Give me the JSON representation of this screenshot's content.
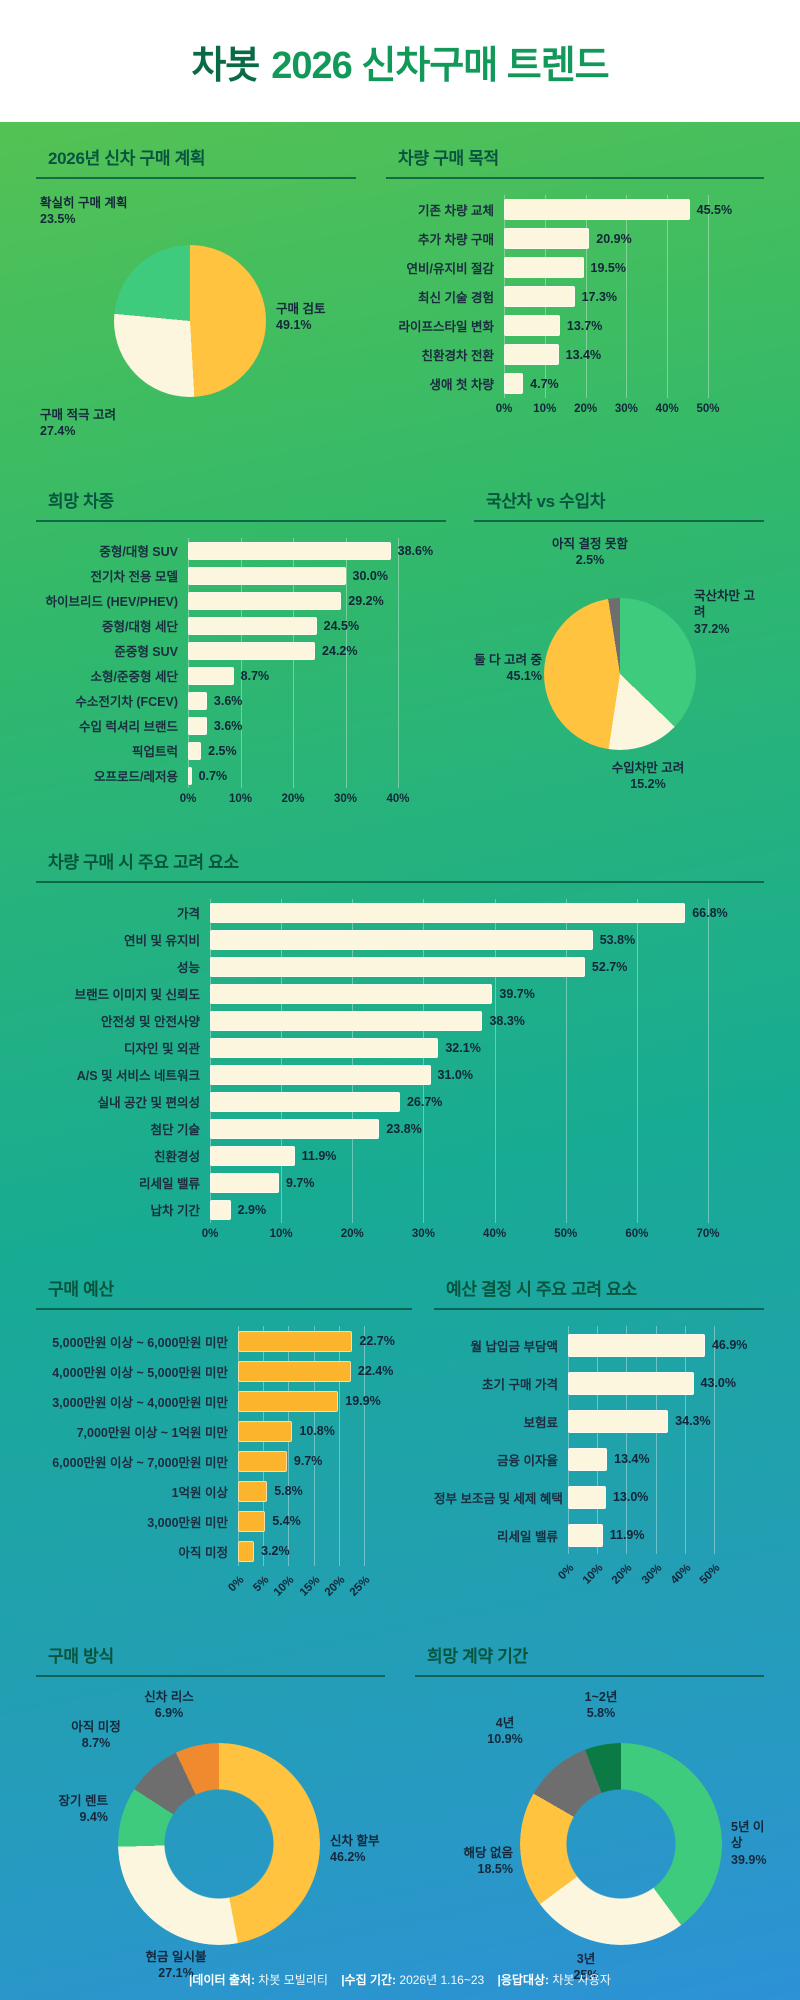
{
  "header": {
    "logo": "차봇",
    "title": "2026 신차구매 트렌드"
  },
  "footer": {
    "parts": [
      {
        "label": "|데이터 출처:",
        "value": "차봇 모빌리티"
      },
      {
        "label": "|수집 기간:",
        "value": "2026년 1.16~23"
      },
      {
        "label": "|응답대상:",
        "value": "차봇 사용자"
      }
    ]
  },
  "colors": {
    "background_top": "#5cc44f",
    "background_bottom": "#2d92d6",
    "section_title": "#07553f",
    "bar_cream": "#fbf6dd",
    "bar_orange": "#fcb42c",
    "pie_green": "#3ecb7e",
    "pie_yellow": "#ffc33f",
    "pie_cream": "#fbf6dd",
    "pie_gray": "#6e6e6e",
    "pie_orange": "#ef8a2e",
    "pie_dark_green": "#0c7a45",
    "text_dark": "#1b2d40"
  },
  "chart_data": [
    {
      "id": "purchase-plan",
      "title": "2026년 신차 구매 계획",
      "type": "pie",
      "slices": [
        {
          "label": "구매 검토",
          "value": 49.1,
          "value_label": "49.1%",
          "color": "#ffc33f"
        },
        {
          "label": "구매 적극 고려",
          "value": 27.4,
          "value_label": "27.4%",
          "color": "#fbf6dd"
        },
        {
          "label": "확실히 구매 계획",
          "value": 23.5,
          "value_label": "23.5%",
          "color": "#3ecb7e"
        }
      ]
    },
    {
      "id": "purchase-purpose",
      "title": "차량 구매 목적",
      "type": "bar",
      "categories": [
        "기존 차량 교체",
        "추가 차량 구매",
        "연비/유지비 절감",
        "최신 기술 경험",
        "라이프스타일 변화",
        "친환경차 전환",
        "생애 첫 차량"
      ],
      "values": [
        45.5,
        20.9,
        19.5,
        17.3,
        13.7,
        13.4,
        4.7
      ],
      "value_labels": [
        "45.5%",
        "20.9%",
        "19.5%",
        "17.3%",
        "13.7%",
        "13.4%",
        "4.7%"
      ],
      "xlim": [
        0,
        50
      ],
      "ticks": [
        "0%",
        "10%",
        "20%",
        "30%",
        "40%",
        "50%"
      ],
      "bar_color": "#fbf6dd",
      "grid": true,
      "tick_rotation": 0
    },
    {
      "id": "desired-vehicle-type",
      "title": "희망 차종",
      "type": "bar",
      "categories": [
        "중형/대형 SUV",
        "전기차 전용 모델",
        "하이브리드 (HEV/PHEV)",
        "중형/대형 세단",
        "준중형 SUV",
        "소형/준중형 세단",
        "수소전기차 (FCEV)",
        "수입 럭셔리 브랜드",
        "픽업트럭",
        "오프로드/레저용"
      ],
      "values": [
        38.6,
        30.0,
        29.2,
        24.5,
        24.2,
        8.7,
        3.6,
        3.6,
        2.5,
        0.7
      ],
      "value_labels": [
        "38.6%",
        "30.0%",
        "29.2%",
        "24.5%",
        "24.2%",
        "8.7%",
        "3.6%",
        "3.6%",
        "2.5%",
        "0.7%"
      ],
      "xlim": [
        0,
        40
      ],
      "ticks": [
        "0%",
        "10%",
        "20%",
        "30%",
        "40%"
      ],
      "bar_color": "#fbf6dd",
      "grid": true,
      "tick_rotation": 0
    },
    {
      "id": "domestic-vs-imported",
      "title": "국산차 vs 수입차",
      "type": "pie",
      "slices": [
        {
          "label": "국산차만 고려",
          "value": 37.2,
          "value_label": "37.2%",
          "color": "#3ecb7e"
        },
        {
          "label": "수입차만 고려",
          "value": 15.2,
          "value_label": "15.2%",
          "color": "#fbf6dd"
        },
        {
          "label": "둘 다 고려 중",
          "value": 45.1,
          "value_label": "45.1%",
          "color": "#ffc33f"
        },
        {
          "label": "아직 결정 못함",
          "value": 2.5,
          "value_label": "2.5%",
          "color": "#6e6e6e"
        }
      ]
    },
    {
      "id": "purchase-considerations",
      "title": "차량 구매 시 주요 고려 요소",
      "type": "bar",
      "categories": [
        "가격",
        "연비 및 유지비",
        "성능",
        "브랜드 이미지 및 신뢰도",
        "안전성 및 안전사양",
        "디자인 및 외관",
        "A/S 및 서비스 네트워크",
        "실내 공간 및 편의성",
        "첨단 기술",
        "친환경성",
        "리세일 밸류",
        "납차 기간"
      ],
      "values": [
        66.8,
        53.8,
        52.7,
        39.7,
        38.3,
        32.1,
        31.0,
        26.7,
        23.8,
        11.9,
        9.7,
        2.9
      ],
      "value_labels": [
        "66.8%",
        "53.8%",
        "52.7%",
        "39.7%",
        "38.3%",
        "32.1%",
        "31.0%",
        "26.7%",
        "23.8%",
        "11.9%",
        "9.7%",
        "2.9%"
      ],
      "xlim": [
        0,
        70
      ],
      "ticks": [
        "0%",
        "10%",
        "20%",
        "30%",
        "40%",
        "50%",
        "60%",
        "70%"
      ],
      "bar_color": "#fbf6dd",
      "grid": true,
      "tick_rotation": 0
    },
    {
      "id": "purchase-budget",
      "title": "구매 예산",
      "type": "bar",
      "categories": [
        "5,000만원 이상 ~ 6,000만원 미만",
        "4,000만원 이상 ~ 5,000만원 미만",
        "3,000만원 이상 ~ 4,000만원 미만",
        "7,000만원 이상 ~ 1억원 미만",
        "6,000만원 이상 ~ 7,000만원 미만",
        "1억원 이상",
        "3,000만원 미만",
        "아직 미정"
      ],
      "values": [
        22.7,
        22.4,
        19.9,
        10.8,
        9.7,
        5.8,
        5.4,
        3.2
      ],
      "value_labels": [
        "22.7%",
        "22.4%",
        "19.9%",
        "10.8%",
        "9.7%",
        "5.8%",
        "5.4%",
        "3.2%"
      ],
      "xlim": [
        0,
        25
      ],
      "ticks": [
        "0%",
        "5%",
        "10%",
        "15%",
        "20%",
        "25%"
      ],
      "bar_color": "#fcb42c",
      "grid": true,
      "tick_rotation": -45
    },
    {
      "id": "budget-considerations",
      "title": "예산 결정 시 주요 고려 요소",
      "type": "bar",
      "categories": [
        "월 납입금 부담액",
        "초기 구매 가격",
        "보험료",
        "금융 이자율",
        "정부 보조금 및 세제 혜택",
        "리세일 밸류"
      ],
      "values": [
        46.9,
        43.0,
        34.3,
        13.4,
        13.0,
        11.9
      ],
      "value_labels": [
        "46.9%",
        "43.0%",
        "34.3%",
        "13.4%",
        "13.0%",
        "11.9%"
      ],
      "xlim": [
        0,
        50
      ],
      "ticks": [
        "0%",
        "10%",
        "20%",
        "30%",
        "40%",
        "50%"
      ],
      "bar_color": "#fbf6dd",
      "grid": true,
      "tick_rotation": -45
    },
    {
      "id": "purchase-method",
      "title": "구매 방식",
      "type": "donut",
      "slices": [
        {
          "label": "신차 할부",
          "value": 46.2,
          "value_label": "46.2%",
          "color": "#ffc33f"
        },
        {
          "label": "현금 일시불",
          "value": 27.1,
          "value_label": "27.1%",
          "color": "#fbf6dd"
        },
        {
          "label": "장기 렌트",
          "value": 9.4,
          "value_label": "9.4%",
          "color": "#3ecb7e"
        },
        {
          "label": "아직 미정",
          "value": 8.7,
          "value_label": "8.7%",
          "color": "#6e6e6e"
        },
        {
          "label": "신차 리스",
          "value": 6.9,
          "value_label": "6.9%",
          "color": "#ef8a2e"
        }
      ]
    },
    {
      "id": "desired-contract-period",
      "title": "희망 계약 기간",
      "type": "donut",
      "slices": [
        {
          "label": "5년 이상",
          "value": 39.9,
          "value_label": "39.9%",
          "color": "#3ecb7e"
        },
        {
          "label": "3년",
          "value": 25,
          "value_label": "25%",
          "color": "#fbf6dd"
        },
        {
          "label": "해당 없음",
          "value": 18.5,
          "value_label": "18.5%",
          "color": "#ffc33f"
        },
        {
          "label": "4년",
          "value": 10.9,
          "value_label": "10.9%",
          "color": "#6e6e6e"
        },
        {
          "label": "1~2년",
          "value": 5.8,
          "value_label": "5.8%",
          "color": "#0c7a45"
        }
      ]
    }
  ]
}
